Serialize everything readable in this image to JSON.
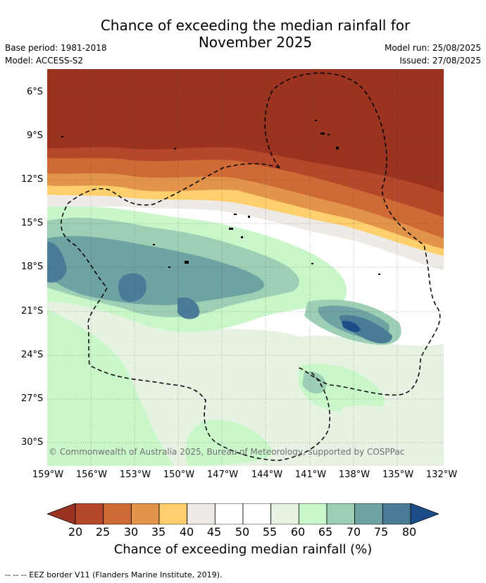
{
  "header": {
    "title_line1": "Chance of exceeding the median rainfall for",
    "title_line2": "November 2025",
    "base_period": "Base period: 1981-2018",
    "model": "Model: ACCESS-S2",
    "model_run": "Model run: 25/08/2025",
    "issued": "Issued: 27/08/2025"
  },
  "map": {
    "copyright": "© Commonwealth of Australia 2025, Bureau of Meteorology, supported by COSPPac",
    "lat_labels": [
      "6°S",
      "9°S",
      "12°S",
      "15°S",
      "18°S",
      "21°S",
      "24°S",
      "27°S",
      "30°S"
    ],
    "lon_labels": [
      "159°W",
      "156°W",
      "153°W",
      "150°W",
      "147°W",
      "144°W",
      "141°W",
      "138°W",
      "135°W",
      "132°W"
    ],
    "eez_border_style": "black dashed",
    "regions_description_colors": {
      "north_dry": "#9a3320",
      "south_wet": "#66a29a"
    }
  },
  "legend": {
    "ticks": [
      "20",
      "25",
      "30",
      "35",
      "40",
      "45",
      "50",
      "55",
      "60",
      "65",
      "70",
      "75",
      "80"
    ],
    "colors": [
      "#9a3320",
      "#b5482a",
      "#cd6a35",
      "#e2944a",
      "#fdcf6d",
      "#eeebe6",
      "#ffffff",
      "#ffffff",
      "#e6f3e2",
      "#c9f7c9",
      "#9ccfb4",
      "#6fa3a3",
      "#4b7c97",
      "#1b4d8a"
    ],
    "title": "Chance of exceeding median rainfall (%)"
  },
  "footer": {
    "text": "-- -- -- EEZ border V11 (Flanders Marine Institute, 2019)."
  }
}
